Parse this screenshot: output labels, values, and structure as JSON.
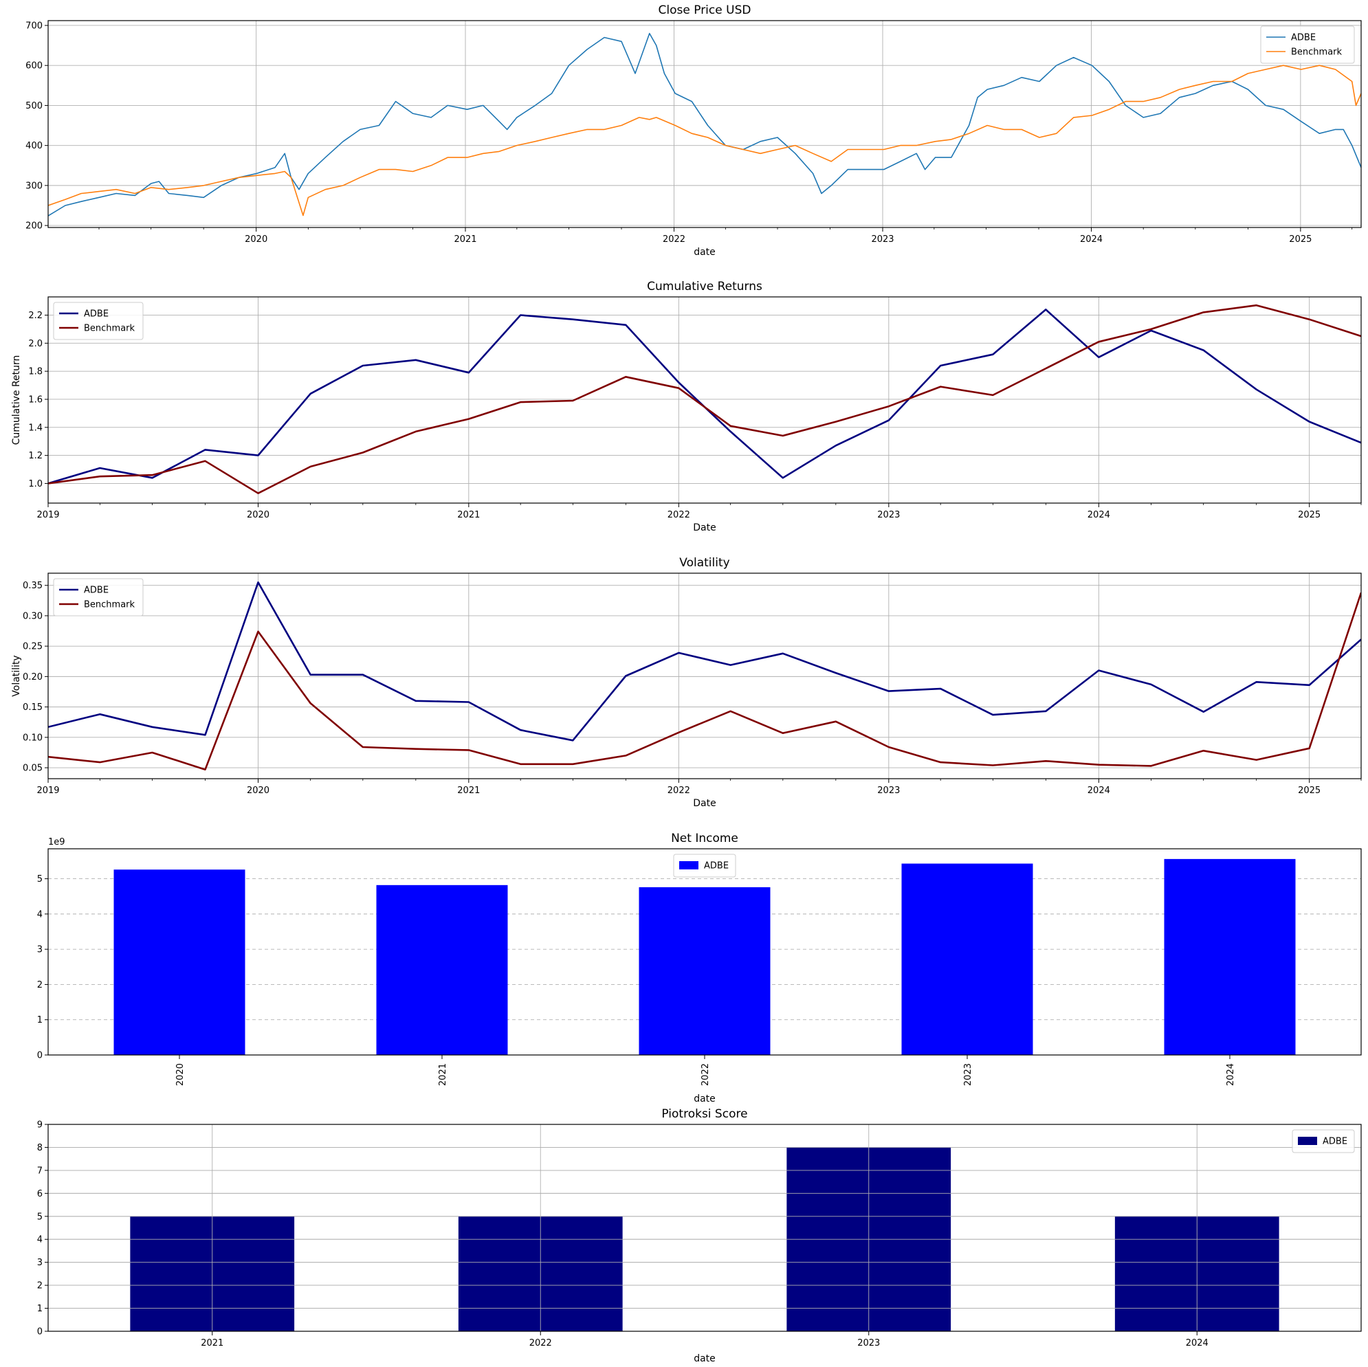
{
  "colors": {
    "adbe_close": "#1f77b4",
    "benchmark_close": "#ff7f0e",
    "adbe_line": "#000080",
    "benchmark_line": "#800000",
    "net_income_bar": "#0000ff",
    "piotroski_bar": "#000080",
    "grid": "#b0b0b0"
  },
  "chart_data": [
    {
      "type": "line",
      "title": "Close Price USD",
      "xlabel": "date",
      "ylabel": "",
      "x_axis": "date",
      "xlim": [
        "2019-01-02",
        "2025-04-17"
      ],
      "ylim": [
        195,
        712
      ],
      "yticks": [
        200,
        300,
        400,
        500,
        600,
        700
      ],
      "xticks": [
        "2020",
        "2021",
        "2022",
        "2023",
        "2024",
        "2025"
      ],
      "grid": true,
      "legend": "top-right",
      "series": [
        {
          "name": "ADBE",
          "color": "#1f77b4",
          "dates": [
            "2019-01-02",
            "2019-02-01",
            "2019-03-01",
            "2019-04-01",
            "2019-05-01",
            "2019-06-03",
            "2019-07-01",
            "2019-07-15",
            "2019-08-01",
            "2019-09-03",
            "2019-10-01",
            "2019-11-01",
            "2019-12-02",
            "2020-01-02",
            "2020-02-03",
            "2020-02-20",
            "2020-03-02",
            "2020-03-16",
            "2020-04-01",
            "2020-05-01",
            "2020-06-01",
            "2020-07-01",
            "2020-08-03",
            "2020-09-01",
            "2020-09-21",
            "2020-10-01",
            "2020-11-02",
            "2020-12-01",
            "2021-01-04",
            "2021-02-01",
            "2021-03-01",
            "2021-03-15",
            "2021-04-01",
            "2021-05-03",
            "2021-06-01",
            "2021-07-01",
            "2021-08-02",
            "2021-09-01",
            "2021-10-01",
            "2021-10-25",
            "2021-11-19",
            "2021-12-01",
            "2021-12-15",
            "2022-01-03",
            "2022-02-01",
            "2022-03-01",
            "2022-04-01",
            "2022-05-02",
            "2022-06-01",
            "2022-07-01",
            "2022-08-01",
            "2022-09-01",
            "2022-09-16",
            "2022-10-03",
            "2022-11-01",
            "2022-12-01",
            "2023-01-03",
            "2023-02-01",
            "2023-03-01",
            "2023-03-16",
            "2023-04-03",
            "2023-05-01",
            "2023-06-01",
            "2023-06-16",
            "2023-07-03",
            "2023-08-01",
            "2023-09-01",
            "2023-10-02",
            "2023-11-01",
            "2023-12-01",
            "2024-01-02",
            "2024-02-01",
            "2024-03-01",
            "2024-04-01",
            "2024-05-01",
            "2024-06-03",
            "2024-07-01",
            "2024-08-01",
            "2024-09-03",
            "2024-10-01",
            "2024-11-01",
            "2024-12-02",
            "2025-01-02",
            "2025-02-03",
            "2025-03-03",
            "2025-03-17",
            "2025-04-01",
            "2025-04-17"
          ],
          "values": [
            224,
            250,
            260,
            270,
            280,
            275,
            305,
            310,
            280,
            275,
            270,
            300,
            320,
            330,
            345,
            380,
            320,
            290,
            330,
            370,
            410,
            440,
            450,
            510,
            490,
            480,
            470,
            500,
            490,
            500,
            460,
            440,
            470,
            500,
            530,
            600,
            640,
            670,
            660,
            580,
            680,
            650,
            580,
            530,
            510,
            450,
            400,
            390,
            410,
            420,
            380,
            330,
            280,
            300,
            340,
            340,
            340,
            360,
            380,
            340,
            370,
            370,
            450,
            520,
            540,
            550,
            570,
            560,
            600,
            620,
            600,
            560,
            500,
            470,
            480,
            520,
            530,
            550,
            560,
            540,
            500,
            490,
            460,
            430,
            440,
            440,
            400,
            345
          ]
        },
        {
          "name": "Benchmark",
          "color": "#ff7f0e",
          "dates": [
            "2019-01-02",
            "2019-02-01",
            "2019-03-01",
            "2019-04-01",
            "2019-05-01",
            "2019-06-03",
            "2019-07-01",
            "2019-08-01",
            "2019-09-03",
            "2019-10-01",
            "2019-11-01",
            "2019-12-02",
            "2020-01-02",
            "2020-02-03",
            "2020-02-20",
            "2020-03-02",
            "2020-03-23",
            "2020-04-01",
            "2020-05-01",
            "2020-06-01",
            "2020-07-01",
            "2020-08-03",
            "2020-09-01",
            "2020-10-01",
            "2020-11-02",
            "2020-12-01",
            "2021-01-04",
            "2021-02-01",
            "2021-03-01",
            "2021-04-01",
            "2021-05-03",
            "2021-06-01",
            "2021-07-01",
            "2021-08-02",
            "2021-09-01",
            "2021-10-01",
            "2021-11-01",
            "2021-11-19",
            "2021-12-01",
            "2022-01-03",
            "2022-02-01",
            "2022-03-01",
            "2022-04-01",
            "2022-05-02",
            "2022-06-01",
            "2022-07-01",
            "2022-08-01",
            "2022-09-01",
            "2022-10-03",
            "2022-11-01",
            "2022-12-01",
            "2023-01-03",
            "2023-02-01",
            "2023-03-01",
            "2023-04-03",
            "2023-05-01",
            "2023-06-01",
            "2023-07-03",
            "2023-08-01",
            "2023-09-01",
            "2023-10-02",
            "2023-11-01",
            "2023-12-01",
            "2024-01-02",
            "2024-02-01",
            "2024-03-01",
            "2024-04-01",
            "2024-05-01",
            "2024-06-03",
            "2024-07-01",
            "2024-08-01",
            "2024-09-03",
            "2024-10-01",
            "2024-11-01",
            "2024-12-02",
            "2025-01-02",
            "2025-02-03",
            "2025-03-03",
            "2025-04-01",
            "2025-04-08",
            "2025-04-17"
          ],
          "values": [
            250,
            265,
            280,
            285,
            290,
            280,
            295,
            290,
            295,
            300,
            310,
            320,
            325,
            330,
            335,
            320,
            225,
            270,
            290,
            300,
            320,
            340,
            340,
            335,
            350,
            370,
            370,
            380,
            385,
            400,
            410,
            420,
            430,
            440,
            440,
            450,
            470,
            465,
            470,
            450,
            430,
            420,
            400,
            390,
            380,
            390,
            400,
            380,
            360,
            390,
            390,
            390,
            400,
            400,
            410,
            415,
            430,
            450,
            440,
            440,
            420,
            430,
            470,
            475,
            490,
            510,
            510,
            520,
            540,
            550,
            560,
            560,
            580,
            590,
            600,
            590,
            600,
            590,
            560,
            500,
            530
          ]
        }
      ]
    },
    {
      "type": "line",
      "title": "Cumulative Returns",
      "xlabel": "Date",
      "ylabel": "Cumulative Return",
      "x_axis": "date",
      "xlim": [
        "2019-01-01",
        "2025-04-01"
      ],
      "ylim": [
        0.86,
        2.33
      ],
      "yticks": [
        1.0,
        1.2,
        1.4,
        1.6,
        1.8,
        2.0,
        2.2
      ],
      "xticks": [
        "2019",
        "2020",
        "2021",
        "2022",
        "2023",
        "2024",
        "2025"
      ],
      "grid": true,
      "legend": "top-left",
      "dates": [
        "2019-01-01",
        "2019-04-01",
        "2019-07-01",
        "2019-10-01",
        "2020-01-01",
        "2020-04-01",
        "2020-07-01",
        "2020-10-01",
        "2021-01-01",
        "2021-04-01",
        "2021-07-01",
        "2021-10-01",
        "2022-01-01",
        "2022-04-01",
        "2022-07-01",
        "2022-10-01",
        "2023-01-01",
        "2023-04-01",
        "2023-07-01",
        "2023-10-01",
        "2024-01-01",
        "2024-04-01",
        "2024-07-01",
        "2024-10-01",
        "2025-01-01",
        "2025-04-01"
      ],
      "series": [
        {
          "name": "ADBE",
          "color": "#000080",
          "values": [
            1.0,
            1.11,
            1.04,
            1.24,
            1.2,
            1.64,
            1.84,
            1.88,
            1.79,
            2.2,
            2.17,
            2.13,
            1.72,
            1.37,
            1.04,
            1.27,
            1.45,
            1.84,
            1.92,
            2.24,
            1.9,
            2.09,
            1.95,
            1.67,
            1.44,
            1.29
          ]
        },
        {
          "name": "Benchmark",
          "color": "#800000",
          "values": [
            1.0,
            1.05,
            1.06,
            1.16,
            0.93,
            1.12,
            1.22,
            1.37,
            1.46,
            1.58,
            1.59,
            1.76,
            1.68,
            1.41,
            1.34,
            1.44,
            1.55,
            1.69,
            1.63,
            1.82,
            2.01,
            2.1,
            2.22,
            2.27,
            2.17,
            2.05
          ]
        }
      ]
    },
    {
      "type": "line",
      "title": "Volatility",
      "xlabel": "Date",
      "ylabel": "Volatility",
      "x_axis": "date",
      "xlim": [
        "2019-01-01",
        "2025-04-01"
      ],
      "ylim": [
        0.032,
        0.37
      ],
      "yticks": [
        0.05,
        0.1,
        0.15,
        0.2,
        0.25,
        0.3,
        0.35
      ],
      "ytick_labels": [
        "0.05",
        "0.10",
        "0.15",
        "0.20",
        "0.25",
        "0.30",
        "0.35"
      ],
      "xticks": [
        "2019",
        "2020",
        "2021",
        "2022",
        "2023",
        "2024",
        "2025"
      ],
      "grid": true,
      "legend": "top-left",
      "dates": [
        "2019-01-01",
        "2019-04-01",
        "2019-07-01",
        "2019-10-01",
        "2020-01-01",
        "2020-04-01",
        "2020-07-01",
        "2020-10-01",
        "2021-01-01",
        "2021-04-01",
        "2021-07-01",
        "2021-10-01",
        "2022-01-01",
        "2022-04-01",
        "2022-07-01",
        "2022-10-01",
        "2023-01-01",
        "2023-04-01",
        "2023-07-01",
        "2023-10-01",
        "2024-01-01",
        "2024-04-01",
        "2024-07-01",
        "2024-10-01",
        "2025-01-01",
        "2025-04-01"
      ],
      "series": [
        {
          "name": "ADBE",
          "color": "#000080",
          "values": [
            0.117,
            0.138,
            0.117,
            0.104,
            0.355,
            0.203,
            0.203,
            0.16,
            0.158,
            0.112,
            0.095,
            0.201,
            0.239,
            0.219,
            0.238,
            0.206,
            0.176,
            0.18,
            0.137,
            0.143,
            0.21,
            0.187,
            0.142,
            0.191,
            0.186,
            0.261
          ]
        },
        {
          "name": "Benchmark",
          "color": "#800000",
          "values": [
            0.068,
            0.059,
            0.075,
            0.047,
            0.274,
            0.156,
            0.084,
            0.081,
            0.079,
            0.056,
            0.056,
            0.07,
            0.108,
            0.143,
            0.107,
            0.126,
            0.084,
            0.059,
            0.054,
            0.061,
            0.055,
            0.053,
            0.078,
            0.063,
            0.082,
            0.338
          ]
        }
      ]
    },
    {
      "type": "bar",
      "title": "Net Income",
      "xlabel": "date",
      "ylabel": "",
      "offset_text": "1e9",
      "categories": [
        "2020",
        "2021",
        "2022",
        "2023",
        "2024"
      ],
      "ylim": [
        0,
        5.85
      ],
      "yticks": [
        0,
        1,
        2,
        3,
        4,
        5
      ],
      "grid": "horizontal dashed",
      "legend": "top-center",
      "series": [
        {
          "name": "ADBE",
          "color": "#0000ff",
          "values": [
            5.26,
            4.82,
            4.76,
            5.43,
            5.56
          ]
        }
      ]
    },
    {
      "type": "bar",
      "title": "Piotroksi Score",
      "xlabel": "date",
      "ylabel": "",
      "categories": [
        "2021",
        "2022",
        "2023",
        "2024"
      ],
      "ylim": [
        0,
        9
      ],
      "yticks": [
        0,
        1,
        2,
        3,
        4,
        5,
        6,
        7,
        8,
        9
      ],
      "grid": true,
      "legend": "top-right",
      "series": [
        {
          "name": "ADBE",
          "color": "#000080",
          "values": [
            5,
            5,
            8,
            5
          ]
        }
      ]
    }
  ]
}
